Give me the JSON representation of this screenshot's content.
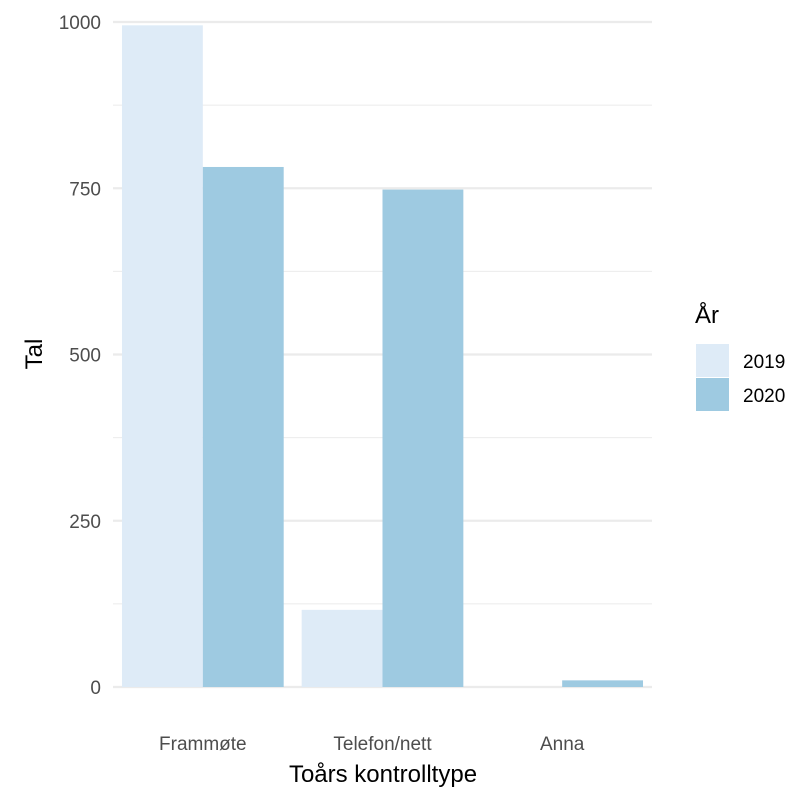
{
  "chart_data": {
    "type": "bar",
    "title": "",
    "xlabel": "Toårs kontrolltype",
    "ylabel": "Tal",
    "categories": [
      "Frammøte",
      "Telefon/nett",
      "Anna"
    ],
    "series": [
      {
        "name": "2019",
        "color": "#deebf7",
        "values": [
          995,
          116,
          0
        ]
      },
      {
        "name": "2020",
        "color": "#9ecae1",
        "values": [
          782,
          748,
          10
        ]
      }
    ],
    "ylim": [
      0,
      1000
    ],
    "yticks": [
      0,
      250,
      500,
      750,
      1000
    ],
    "grid": true,
    "legend": {
      "title": "År",
      "position": "right"
    }
  }
}
